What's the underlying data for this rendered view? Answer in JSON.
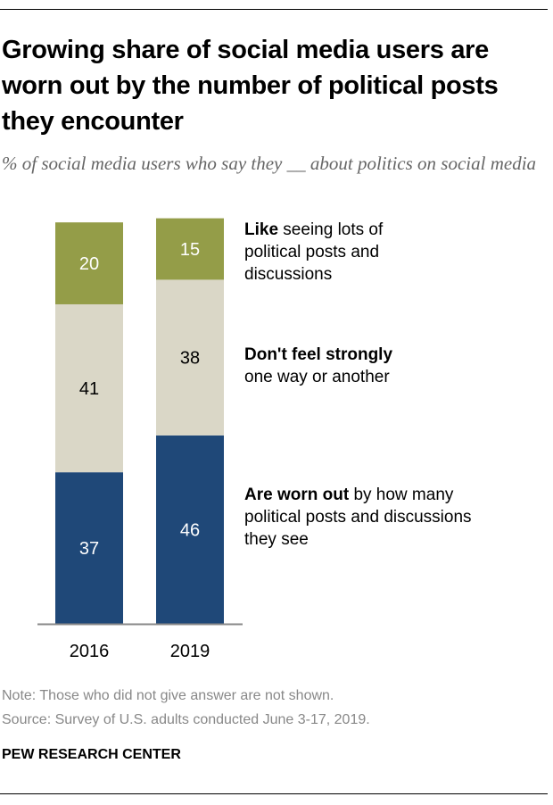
{
  "title": "Growing share of social media users are worn out by the number of political posts they encounter",
  "subtitle": "% of social media users who say they __ about politics on social media",
  "note": "Note: Those who did not give answer are not shown.",
  "source": "Source: Survey of U.S. adults conducted June 3-17, 2019.",
  "brand": "PEW RESEARCH CENTER",
  "legend": [
    {
      "bold": "Like",
      "rest": " seeing lots of political posts and discussions"
    },
    {
      "bold": "Don't feel strongly",
      "rest": " one way or another"
    },
    {
      "bold": "Are worn out",
      "rest": " by how many political posts and discussions they see"
    }
  ],
  "chart_data": {
    "type": "bar",
    "stacked": true,
    "orientation": "vertical",
    "categories": [
      "2016",
      "2019"
    ],
    "series": [
      {
        "name": "Are worn out by how many political posts and discussions they see",
        "values": [
          37,
          46
        ],
        "color": "#1F4878",
        "label_color": "#ffffff"
      },
      {
        "name": "Don't feel strongly one way or another",
        "values": [
          41,
          38
        ],
        "color": "#DAD7C7",
        "label_color": "#000000"
      },
      {
        "name": "Like seeing lots of political posts and discussions",
        "values": [
          20,
          15
        ],
        "color": "#949D48",
        "label_color": "#ffffff"
      }
    ],
    "ylim": [
      0,
      100
    ],
    "grid": false,
    "legend_placement": "right"
  }
}
